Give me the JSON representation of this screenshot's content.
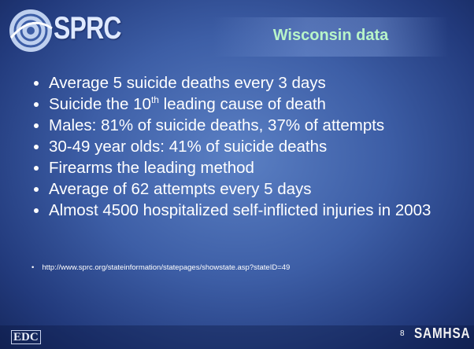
{
  "header": {
    "logo": "SPRC",
    "title": "Wisconsin data"
  },
  "bullets": [
    {
      "text": "Average 5 suicide deaths every 3 days"
    },
    {
      "before": "Suicide the 10",
      "sup": "th",
      "after": " leading cause of death"
    },
    {
      "text": "Males: 81% of suicide deaths, 37% of attempts"
    },
    {
      "text": "30-49 year olds: 41% of suicide deaths"
    },
    {
      "text": "Firearms the leading method"
    },
    {
      "text": "Average of 62 attempts every 5 days"
    },
    {
      "text": "Almost 4500 hospitalized self-inflicted injuries in 2003"
    }
  ],
  "source": "http://www.sprc.org/stateinformation/statepages/showstate.asp?stateID=49",
  "footer": {
    "left_logo": "EDC",
    "page": "8",
    "right_logo": "SAMHSA"
  }
}
